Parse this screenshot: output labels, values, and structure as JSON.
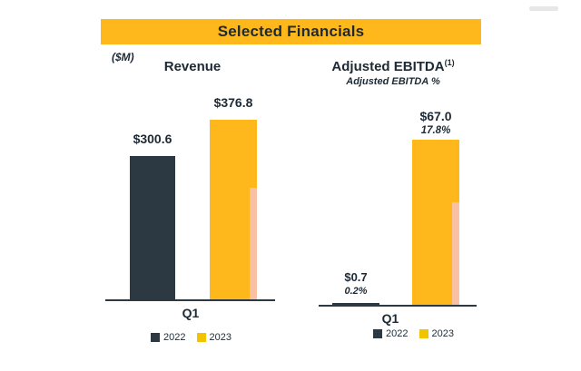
{
  "page": {
    "title": "Selected Financials",
    "units_label": "($M)"
  },
  "colors": {
    "accent_yellow": "#FFB81C",
    "dark_navy": "#2C3842",
    "bar_shadow_pink": "#F8C2B2"
  },
  "chart_data": [
    {
      "type": "bar",
      "title": "Revenue",
      "categories": [
        "Q1"
      ],
      "series": [
        {
          "name": "2022",
          "values": [
            300.6
          ],
          "value_labels": [
            "$300.6"
          ]
        },
        {
          "name": "2023",
          "values": [
            376.8
          ],
          "value_labels": [
            "$376.8"
          ]
        }
      ],
      "ylabel": "$M",
      "legend_position": "bottom",
      "grid": false
    },
    {
      "type": "bar",
      "title": "Adjusted EBITDA",
      "title_note": "(1)",
      "subtitle": "Adjusted EBITDA %",
      "categories": [
        "Q1"
      ],
      "series": [
        {
          "name": "2022",
          "values": [
            0.7
          ],
          "value_labels": [
            "$0.7"
          ],
          "pct_labels": [
            "0.2%"
          ]
        },
        {
          "name": "2023",
          "values": [
            67.0
          ],
          "value_labels": [
            "$67.0"
          ],
          "pct_labels": [
            "17.8%"
          ]
        }
      ],
      "ylabel": "$M",
      "legend_position": "bottom",
      "grid": false
    }
  ]
}
